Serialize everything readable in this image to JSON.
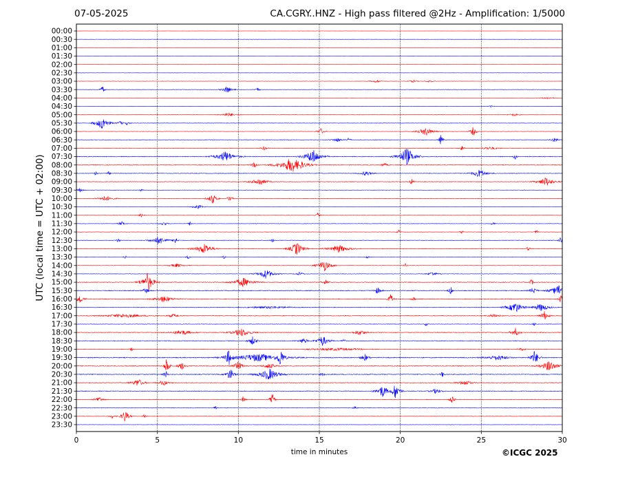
{
  "header": {
    "date": "07-05-2025",
    "title": "CA.CGRY..HNZ - High pass filtered @2Hz - Amplification: 1/5000"
  },
  "footer": {
    "copyright": "©ICGC 2025"
  },
  "chart_data": {
    "type": "line",
    "xlabel": "time in minutes",
    "ylabel": "UTC (local time = UTC + 02:00)",
    "xlim": [
      0,
      30
    ],
    "x_ticks": [
      0,
      5,
      10,
      15,
      20,
      25,
      30
    ],
    "grid": "vertical dotted lines at 5-minute ticks",
    "colors": {
      "odd_rows": "#0000ff",
      "even_rows": "#ff0000"
    },
    "rows": [
      {
        "label": "00:00",
        "noise": 0.2,
        "events": []
      },
      {
        "label": "00:30",
        "noise": 0.2,
        "events": []
      },
      {
        "label": "01:00",
        "noise": 0.2,
        "events": []
      },
      {
        "label": "01:30",
        "noise": 0.2,
        "events": []
      },
      {
        "label": "02:00",
        "noise": 0.2,
        "events": []
      },
      {
        "label": "02:30",
        "noise": 0.2,
        "events": []
      },
      {
        "label": "03:00",
        "noise": 0.3,
        "events": [
          [
            18.5,
            0.3,
            2
          ],
          [
            20.8,
            0.2,
            2
          ],
          [
            21.8,
            0.2,
            2
          ]
        ]
      },
      {
        "label": "03:30",
        "noise": 0.4,
        "events": [
          [
            1.6,
            0.1,
            6
          ],
          [
            9.3,
            0.25,
            5
          ],
          [
            11.2,
            0.1,
            3
          ]
        ]
      },
      {
        "label": "04:00",
        "noise": 0.3,
        "events": [
          [
            29.1,
            0.3,
            2
          ]
        ]
      },
      {
        "label": "04:30",
        "noise": 0.3,
        "events": [
          [
            25.6,
            0.1,
            2
          ]
        ]
      },
      {
        "label": "05:00",
        "noise": 0.4,
        "events": [
          [
            9.4,
            0.4,
            3
          ],
          [
            27.0,
            0.3,
            2
          ]
        ]
      },
      {
        "label": "05:30",
        "noise": 0.4,
        "events": [
          [
            1.6,
            0.3,
            10
          ],
          [
            2.7,
            0.2,
            3
          ],
          [
            3.1,
            0.15,
            3
          ]
        ]
      },
      {
        "label": "06:00",
        "noise": 0.4,
        "events": [
          [
            15.1,
            0.15,
            5
          ],
          [
            21.6,
            0.4,
            6
          ],
          [
            24.5,
            0.15,
            7
          ]
        ]
      },
      {
        "label": "06:30",
        "noise": 0.5,
        "events": [
          [
            16.1,
            0.3,
            3
          ],
          [
            16.8,
            0.1,
            4
          ],
          [
            22.5,
            0.1,
            8
          ],
          [
            29.5,
            0.3,
            3
          ]
        ]
      },
      {
        "label": "07:00",
        "noise": 0.5,
        "events": [
          [
            11.6,
            0.2,
            3
          ],
          [
            23.8,
            0.1,
            5
          ],
          [
            25.5,
            0.6,
            2
          ]
        ]
      },
      {
        "label": "07:30",
        "noise": 0.7,
        "events": [
          [
            9.2,
            0.5,
            8
          ],
          [
            14.6,
            0.4,
            11
          ],
          [
            20.4,
            0.4,
            13
          ],
          [
            27.1,
            0.1,
            5
          ]
        ]
      },
      {
        "label": "08:00",
        "noise": 0.7,
        "events": [
          [
            11.0,
            0.2,
            4
          ],
          [
            13.3,
            0.6,
            11
          ],
          [
            13.8,
            0.3,
            7
          ],
          [
            19.0,
            0.2,
            3
          ]
        ]
      },
      {
        "label": "08:30",
        "noise": 0.6,
        "events": [
          [
            1.2,
            0.1,
            3
          ],
          [
            2.0,
            0.1,
            3
          ],
          [
            17.9,
            0.3,
            4
          ],
          [
            24.9,
            0.4,
            6
          ]
        ]
      },
      {
        "label": "09:00",
        "noise": 0.6,
        "events": [
          [
            11.3,
            0.4,
            6
          ],
          [
            20.7,
            0.1,
            5
          ],
          [
            29.0,
            0.4,
            7
          ]
        ]
      },
      {
        "label": "09:30",
        "noise": 0.4,
        "events": [
          [
            0.2,
            0.2,
            3
          ],
          [
            4.0,
            0.1,
            2
          ]
        ]
      },
      {
        "label": "10:00",
        "noise": 0.5,
        "events": [
          [
            1.8,
            0.4,
            4
          ],
          [
            8.4,
            0.2,
            8
          ],
          [
            9.5,
            0.1,
            7
          ]
        ]
      },
      {
        "label": "10:30",
        "noise": 0.3,
        "events": [
          [
            7.5,
            0.3,
            3
          ]
        ]
      },
      {
        "label": "11:00",
        "noise": 0.4,
        "events": [
          [
            4.0,
            0.1,
            3
          ],
          [
            14.9,
            0.1,
            4
          ]
        ]
      },
      {
        "label": "11:30",
        "noise": 0.4,
        "events": [
          [
            2.8,
            0.2,
            3
          ],
          [
            5.4,
            0.2,
            3
          ],
          [
            7.0,
            0.1,
            3
          ],
          [
            25.7,
            0.1,
            3
          ]
        ]
      },
      {
        "label": "12:00",
        "noise": 0.4,
        "events": [
          [
            19.9,
            0.1,
            3
          ],
          [
            23.8,
            0.1,
            3
          ],
          [
            28.4,
            0.1,
            3
          ]
        ]
      },
      {
        "label": "12:30",
        "noise": 0.5,
        "events": [
          [
            2.6,
            0.1,
            4
          ],
          [
            5.1,
            0.4,
            6
          ],
          [
            6.1,
            0.1,
            7
          ],
          [
            12.1,
            0.1,
            3
          ],
          [
            29.9,
            0.1,
            6
          ]
        ]
      },
      {
        "label": "13:00",
        "noise": 0.6,
        "events": [
          [
            7.9,
            0.4,
            8
          ],
          [
            13.6,
            0.3,
            10
          ],
          [
            16.2,
            0.5,
            6
          ],
          [
            27.9,
            0.1,
            4
          ]
        ]
      },
      {
        "label": "13:30",
        "noise": 0.4,
        "events": [
          [
            3.0,
            0.1,
            3
          ],
          [
            6.9,
            0.1,
            3
          ],
          [
            9.1,
            0.1,
            3
          ],
          [
            18.0,
            0.1,
            3
          ]
        ]
      },
      {
        "label": "14:00",
        "noise": 0.4,
        "events": [
          [
            6.2,
            0.4,
            3
          ],
          [
            15.3,
            0.3,
            9
          ],
          [
            20.3,
            0.1,
            3
          ]
        ]
      },
      {
        "label": "14:30",
        "noise": 0.4,
        "events": [
          [
            11.7,
            0.4,
            7
          ],
          [
            13.8,
            0.2,
            3
          ],
          [
            22.0,
            0.3,
            3
          ]
        ]
      },
      {
        "label": "15:00",
        "noise": 0.7,
        "events": [
          [
            4.4,
            0.3,
            14
          ],
          [
            10.3,
            0.5,
            7
          ],
          [
            15.4,
            0.2,
            4
          ],
          [
            28.1,
            0.1,
            5
          ]
        ]
      },
      {
        "label": "15:30",
        "noise": 0.8,
        "events": [
          [
            4.3,
            0.2,
            4
          ],
          [
            18.6,
            0.2,
            5
          ],
          [
            23.1,
            0.1,
            7
          ],
          [
            28.2,
            0.2,
            5
          ],
          [
            29.8,
            0.4,
            9
          ]
        ]
      },
      {
        "label": "16:00",
        "noise": 0.8,
        "events": [
          [
            0.2,
            0.2,
            7
          ],
          [
            5.4,
            0.5,
            5
          ],
          [
            19.4,
            0.1,
            11
          ],
          [
            20.8,
            0.1,
            5
          ],
          [
            29.9,
            0.1,
            6
          ]
        ]
      },
      {
        "label": "16:30",
        "noise": 0.6,
        "events": [
          [
            12.0,
            1.6,
            2
          ],
          [
            27.1,
            0.4,
            8
          ],
          [
            28.7,
            0.4,
            6
          ]
        ]
      },
      {
        "label": "17:00",
        "noise": 0.7,
        "events": [
          [
            3.0,
            1.2,
            3
          ],
          [
            6.0,
            0.3,
            3
          ],
          [
            25.8,
            0.4,
            3
          ],
          [
            28.9,
            0.2,
            7
          ]
        ]
      },
      {
        "label": "17:30",
        "noise": 0.5,
        "events": [
          [
            21.6,
            0.1,
            3
          ],
          [
            28.3,
            0.1,
            3
          ]
        ]
      },
      {
        "label": "18:00",
        "noise": 0.7,
        "events": [
          [
            6.5,
            0.6,
            4
          ],
          [
            10.2,
            0.5,
            6
          ],
          [
            17.5,
            0.4,
            4
          ],
          [
            27.1,
            0.2,
            7
          ]
        ]
      },
      {
        "label": "18:30",
        "noise": 0.7,
        "events": [
          [
            10.9,
            0.2,
            7
          ],
          [
            15.2,
            0.3,
            8
          ],
          [
            14.0,
            0.3,
            4
          ],
          [
            16.5,
            0.1,
            4
          ]
        ]
      },
      {
        "label": "19:00",
        "noise": 0.6,
        "events": [
          [
            3.4,
            0.1,
            4
          ],
          [
            16.0,
            2.0,
            2
          ],
          [
            27.5,
            0.3,
            2
          ]
        ]
      },
      {
        "label": "19:30",
        "noise": 0.9,
        "events": [
          [
            9.4,
            0.2,
            12
          ],
          [
            11.2,
            1.3,
            6
          ],
          [
            12.6,
            0.2,
            14
          ],
          [
            17.8,
            0.2,
            6
          ],
          [
            26.0,
            0.7,
            4
          ],
          [
            28.3,
            0.2,
            11
          ]
        ]
      },
      {
        "label": "20:00",
        "noise": 0.8,
        "events": [
          [
            5.6,
            0.1,
            18
          ],
          [
            6.5,
            0.2,
            6
          ],
          [
            10.0,
            0.3,
            6
          ],
          [
            11.9,
            0.4,
            4
          ],
          [
            29.2,
            0.4,
            8
          ]
        ]
      },
      {
        "label": "20:30",
        "noise": 0.8,
        "events": [
          [
            5.5,
            0.1,
            7
          ],
          [
            9.5,
            0.2,
            9
          ],
          [
            11.9,
            0.5,
            9
          ],
          [
            15.2,
            0.1,
            7
          ],
          [
            22.6,
            0.1,
            5
          ]
        ]
      },
      {
        "label": "21:00",
        "noise": 0.7,
        "events": [
          [
            3.8,
            0.3,
            6
          ],
          [
            5.4,
            0.3,
            4
          ],
          [
            24.0,
            0.4,
            4
          ]
        ]
      },
      {
        "label": "21:30",
        "noise": 0.7,
        "events": [
          [
            18.9,
            0.3,
            9
          ],
          [
            19.7,
            0.2,
            12
          ],
          [
            22.2,
            0.3,
            4
          ]
        ]
      },
      {
        "label": "22:00",
        "noise": 0.6,
        "events": [
          [
            1.4,
            0.2,
            5
          ],
          [
            10.3,
            0.1,
            5
          ],
          [
            12.1,
            0.1,
            10
          ],
          [
            23.2,
            0.1,
            8
          ]
        ]
      },
      {
        "label": "22:30",
        "noise": 0.5,
        "events": [
          [
            8.6,
            0.1,
            4
          ],
          [
            17.2,
            0.1,
            3
          ]
        ]
      },
      {
        "label": "23:00",
        "noise": 0.4,
        "events": [
          [
            2.2,
            0.1,
            4
          ],
          [
            3.0,
            0.2,
            9
          ],
          [
            4.2,
            0.1,
            3
          ]
        ]
      },
      {
        "label": "23:30",
        "noise": 0.3,
        "events": []
      }
    ]
  }
}
